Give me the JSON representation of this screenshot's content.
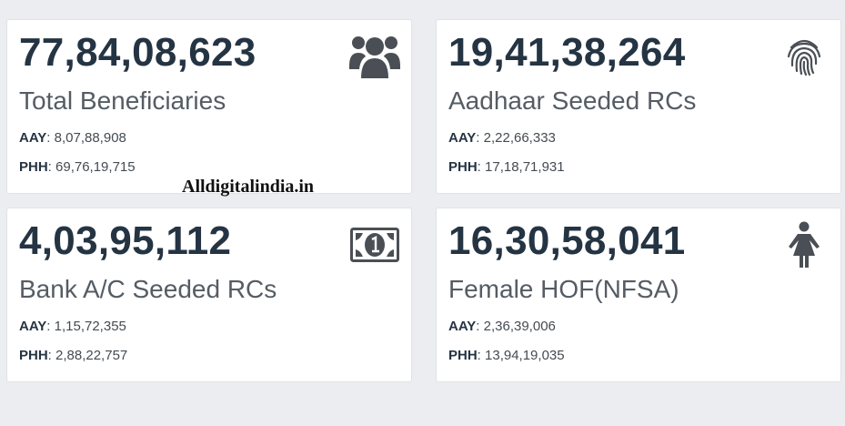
{
  "cards": [
    {
      "value": "77,84,08,623",
      "label": "Total Beneficiaries",
      "icon": "users-icon",
      "aay_key": "AAY",
      "aay_value": ": 8,07,88,908",
      "phh_key": "PHH",
      "phh_value": ": 69,76,19,715"
    },
    {
      "value": "19,41,38,264",
      "label": "Aadhaar Seeded RCs",
      "icon": "fingerprint-icon",
      "aay_key": "AAY",
      "aay_value": ": 2,22,66,333",
      "phh_key": "PHH",
      "phh_value": ": 17,18,71,931"
    },
    {
      "value": "4,03,95,112",
      "label": "Bank A/C Seeded RCs",
      "icon": "money-bill-icon",
      "aay_key": "AAY",
      "aay_value": ": 1,15,72,355",
      "phh_key": "PHH",
      "phh_value": ": 2,88,22,757"
    },
    {
      "value": "16,30,58,041",
      "label": "Female HOF(NFSA)",
      "icon": "female-icon",
      "aay_key": "AAY",
      "aay_value": ": 2,36,39,006",
      "phh_key": "PHH",
      "phh_value": ": 13,94,19,035"
    }
  ],
  "watermark": "Alldigitalindia.in",
  "colors": {
    "background": "#ecedf0",
    "card": "#ffffff",
    "value_text": "#253443",
    "label_text": "#555c64",
    "icon": "#4a4f55"
  }
}
